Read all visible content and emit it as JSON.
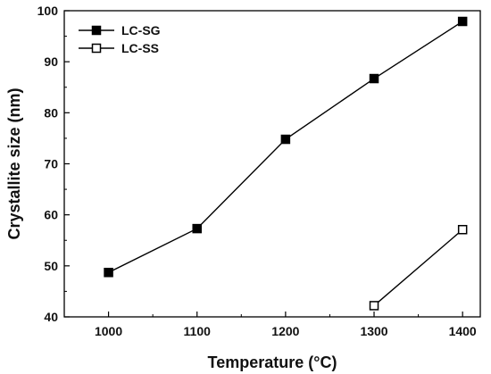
{
  "chart_data": {
    "type": "line",
    "xlabel": "Temperature (°C)",
    "ylabel": "Crystallite size (nm)",
    "xlim": [
      950,
      1420
    ],
    "ylim": [
      40,
      100
    ],
    "x_ticks": [
      1000,
      1100,
      1200,
      1300,
      1400
    ],
    "y_ticks": [
      40,
      50,
      60,
      70,
      80,
      90,
      100
    ],
    "legend_position": "top-left",
    "grid": false,
    "colors": {
      "line": "#000000",
      "marker_fill_filled": "#000000",
      "marker_fill_hollow": "#ffffff"
    },
    "series": [
      {
        "name": "LC-SG",
        "marker": "filled-square",
        "x": [
          1000,
          1100,
          1200,
          1300,
          1400
        ],
        "y": [
          48.7,
          57.3,
          74.8,
          86.7,
          97.9
        ]
      },
      {
        "name": "LC-SS",
        "marker": "hollow-square",
        "x": [
          1300,
          1400
        ],
        "y": [
          42.2,
          57.1
        ]
      }
    ]
  }
}
